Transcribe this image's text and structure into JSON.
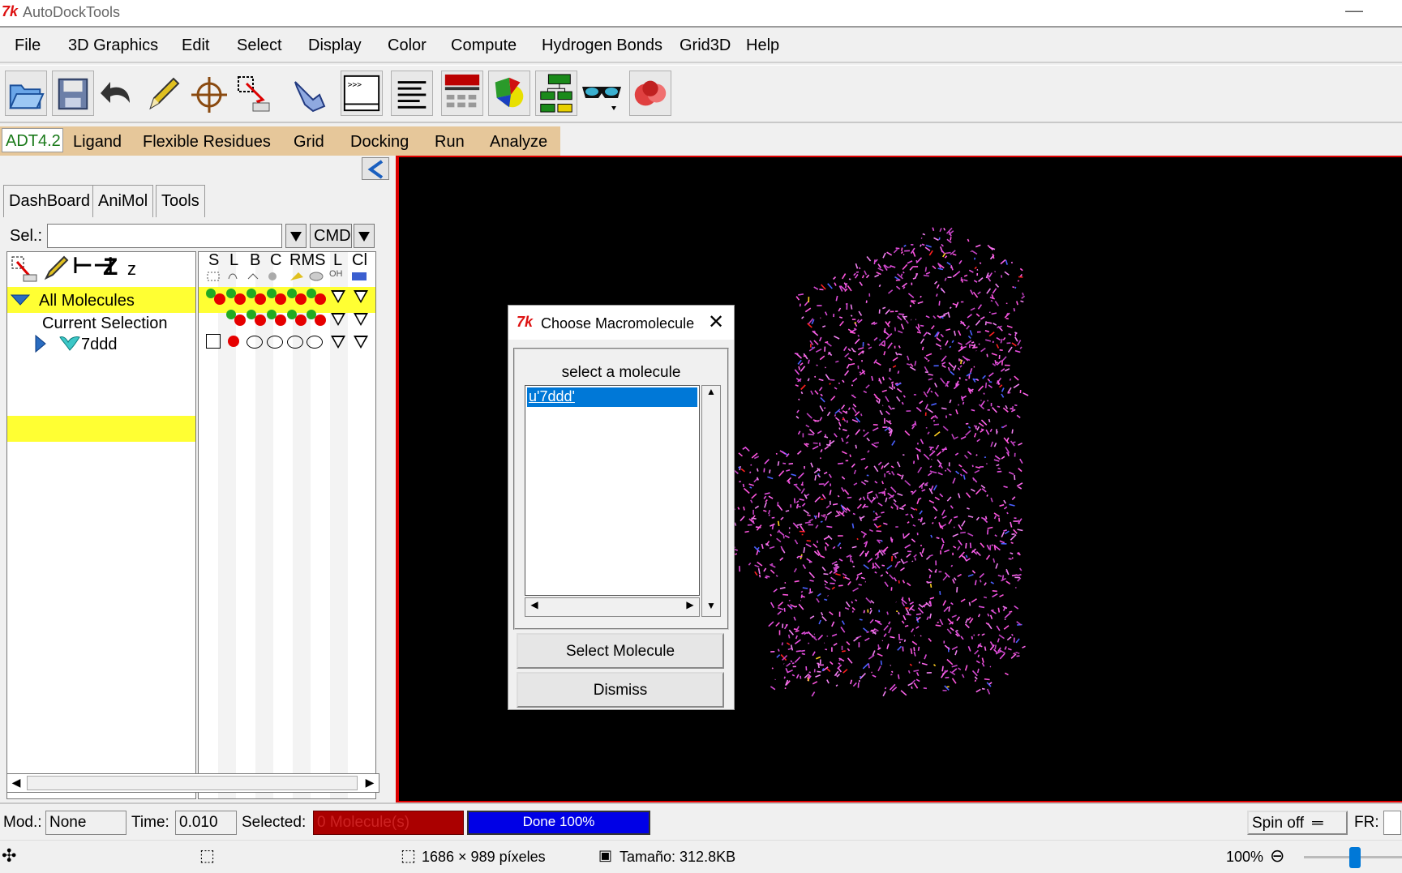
{
  "window": {
    "title": "AutoDockTools",
    "tk_logo": "7k"
  },
  "menu": [
    "File",
    "3D Graphics",
    "Edit",
    "Select",
    "Display",
    "Color",
    "Compute",
    "Hydrogen Bonds",
    "Grid3D",
    "Help"
  ],
  "toolbar_icons": [
    "open-folder-icon",
    "save-icon",
    "undo-icon",
    "pencil-icon",
    "crosshair-icon",
    "select-pick-icon",
    "pointing-hand-icon",
    "python-shell-icon",
    "align-lines-icon",
    "spreadsheet-icon",
    "color-shapes-icon",
    "flowchart-icon",
    "stereo-glasses-icon",
    "molecule-sphere-icon"
  ],
  "adt_tabs": {
    "active": "ADT4.2",
    "items": [
      "Ligand",
      "Flexible Residues",
      "Grid",
      "Docking",
      "Run",
      "Analyze"
    ]
  },
  "left_tabs": [
    "DashBoard",
    "AniMol",
    "Tools"
  ],
  "selector": {
    "label": "Sel.:",
    "value": "",
    "cmd": "CMD"
  },
  "tree_tools": {
    "z_big": "Z",
    "z_small": "z"
  },
  "column_headers": [
    "S",
    "L",
    "B",
    "C",
    "RMS",
    "L",
    "Cl"
  ],
  "column_sub": {
    "L2": "OH"
  },
  "tree": {
    "all_molecules": "All Molecules",
    "current_selection": "Current Selection",
    "molecule": "7ddd"
  },
  "dialog": {
    "title": "Choose Macromolecule",
    "group_label": "select a molecule",
    "list_items": [
      "u'7ddd'"
    ],
    "select_button": "Select Molecule",
    "dismiss_button": "Dismiss"
  },
  "status": {
    "mod_label": "Mod.:",
    "mod_value": "None",
    "time_label": "Time:",
    "time_value": "0.010",
    "selected_label": "Selected:",
    "selected_value": "0 Molecule(s)",
    "progress_text": "Done 100%",
    "progress": 1.0,
    "spin": "Spin off",
    "fr_label": "FR:"
  },
  "bottom_bar": {
    "dimensions": "1686 × 989 píxeles",
    "size": "Tamaño: 312.8KB",
    "zoom": "100%"
  }
}
